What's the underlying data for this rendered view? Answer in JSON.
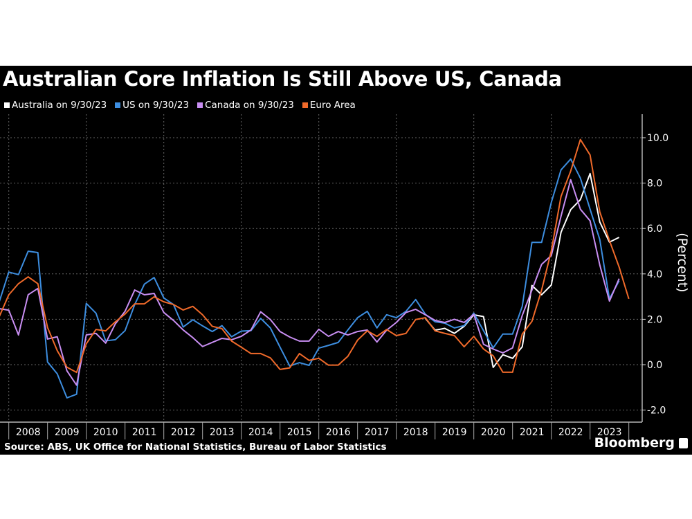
{
  "title": "Australian Core Inflation Is Still Above US, Canada",
  "source": "Source: ABS, UK Office for National Statistics, Bureau of Labor Statistics",
  "logo": "Bloomberg",
  "chart_data": {
    "type": "line",
    "title": "Australian Core Inflation Is Still Above US, Canada",
    "ylabel": "(Percent)",
    "ylim": [
      -2.6,
      11
    ],
    "yticks": [
      -2.0,
      0.0,
      2.0,
      4.0,
      6.0,
      8.0,
      10.0
    ],
    "ytick_labels": [
      "-2.0",
      "0.0",
      "2.0",
      "4.0",
      "6.0",
      "8.0",
      "10.0"
    ],
    "x_tick_labels": [
      "2008",
      "2009",
      "2010",
      "2011",
      "2012",
      "2013",
      "2014",
      "2015",
      "2016",
      "2017",
      "2018",
      "2019",
      "2020",
      "2021",
      "2022",
      "2023"
    ],
    "x_frequency": "quarterly",
    "grid": true,
    "legend_position": "top-left",
    "series": [
      {
        "name": "Australia on 9/30/23",
        "color": "#ffffff",
        "start": "2018-Q3",
        "values": [
          2.04,
          1.52,
          1.6,
          1.38,
          1.69,
          2.2,
          2.12,
          -0.12,
          0.44,
          0.28,
          0.79,
          3.49,
          3.08,
          3.51,
          5.83,
          6.83,
          7.27,
          8.42,
          6.29,
          5.4,
          5.61
        ]
      },
      {
        "name": "US on 9/30/23",
        "color": "#3d8ee0",
        "start": "2007-Q3",
        "values": [
          2.75,
          4.08,
          3.97,
          5.0,
          4.94,
          0.12,
          -0.4,
          -1.46,
          -1.3,
          2.7,
          2.27,
          1.05,
          1.1,
          1.5,
          2.65,
          3.55,
          3.84,
          2.94,
          2.65,
          1.66,
          1.98,
          1.71,
          1.46,
          1.72,
          1.23,
          1.48,
          1.5,
          2.04,
          1.62,
          0.77,
          -0.06,
          0.09,
          -0.03,
          0.73,
          0.85,
          0.98,
          1.53,
          2.07,
          2.35,
          1.62,
          2.2,
          2.07,
          2.35,
          2.87,
          2.22,
          1.89,
          1.83,
          1.62,
          1.72,
          2.27,
          1.5,
          0.74,
          1.35,
          1.35,
          2.57,
          5.39,
          5.39,
          7.15,
          8.58,
          9.06,
          8.22,
          6.85,
          5.52,
          2.9,
          3.7
        ]
      },
      {
        "name": "Canada on 9/30/23",
        "color": "#c88ef2",
        "start": "2007-Q3",
        "values": [
          2.47,
          2.4,
          1.31,
          3.08,
          3.36,
          1.13,
          1.23,
          -0.27,
          -0.9,
          1.31,
          1.38,
          0.95,
          1.8,
          2.35,
          3.29,
          3.08,
          3.14,
          2.3,
          1.95,
          1.53,
          1.19,
          0.8,
          0.98,
          1.16,
          1.1,
          1.25,
          1.53,
          2.33,
          1.99,
          1.46,
          1.22,
          1.04,
          1.04,
          1.56,
          1.25,
          1.46,
          1.31,
          1.46,
          1.53,
          1.0,
          1.52,
          1.86,
          2.3,
          2.44,
          2.2,
          1.95,
          1.86,
          2.0,
          1.86,
          2.22,
          0.9,
          0.69,
          0.52,
          0.74,
          2.17,
          3.29,
          4.42,
          4.81,
          6.54,
          8.15,
          6.85,
          6.34,
          4.4,
          2.8,
          3.79
        ]
      },
      {
        "name": "Euro Area",
        "color": "#f06a2a",
        "start": "2007-Q3",
        "values": [
          2.1,
          3.08,
          3.57,
          3.87,
          3.57,
          1.64,
          0.62,
          -0.11,
          -0.34,
          0.92,
          1.55,
          1.49,
          1.89,
          2.23,
          2.68,
          2.68,
          2.99,
          2.77,
          2.65,
          2.41,
          2.57,
          2.2,
          1.69,
          1.59,
          1.04,
          0.77,
          0.49,
          0.49,
          0.3,
          -0.21,
          -0.14,
          0.49,
          0.19,
          0.28,
          -0.02,
          -0.02,
          0.37,
          1.08,
          1.49,
          1.25,
          1.55,
          1.28,
          1.38,
          1.99,
          2.07,
          1.49,
          1.38,
          1.28,
          0.79,
          1.25,
          0.69,
          0.39,
          -0.33,
          -0.33,
          1.35,
          1.91,
          3.29,
          5.02,
          7.41,
          8.53,
          9.92,
          9.24,
          6.74,
          5.47,
          4.3,
          2.9
        ]
      }
    ]
  }
}
